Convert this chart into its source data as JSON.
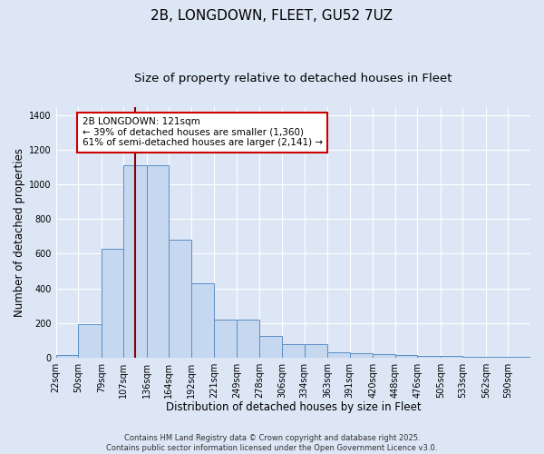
{
  "title_line1": "2B, LONGDOWN, FLEET, GU52 7UZ",
  "title_line2": "Size of property relative to detached houses in Fleet",
  "xlabel": "Distribution of detached houses by size in Fleet",
  "ylabel": "Number of detached properties",
  "bin_labels": [
    "22sqm",
    "50sqm",
    "79sqm",
    "107sqm",
    "136sqm",
    "164sqm",
    "192sqm",
    "221sqm",
    "249sqm",
    "278sqm",
    "306sqm",
    "334sqm",
    "363sqm",
    "391sqm",
    "420sqm",
    "448sqm",
    "476sqm",
    "505sqm",
    "533sqm",
    "562sqm",
    "590sqm"
  ],
  "bin_edges": [
    22,
    50,
    79,
    107,
    136,
    164,
    192,
    221,
    249,
    278,
    306,
    334,
    363,
    391,
    420,
    448,
    476,
    505,
    533,
    562,
    590
  ],
  "bar_heights": [
    15,
    190,
    630,
    1110,
    1110,
    680,
    430,
    220,
    220,
    125,
    75,
    75,
    30,
    25,
    20,
    15,
    10,
    8,
    5,
    5,
    3
  ],
  "bar_color": "#c5d8f0",
  "bar_edge_color": "#5b8ec4",
  "property_size": 121,
  "vline_color": "#8b0000",
  "annotation_text": "2B LONGDOWN: 121sqm\n← 39% of detached houses are smaller (1,360)\n61% of semi-detached houses are larger (2,141) →",
  "annotation_box_color": "#ffffff",
  "annotation_box_edge": "#cc0000",
  "ylim": [
    0,
    1450
  ],
  "yticks": [
    0,
    200,
    400,
    600,
    800,
    1000,
    1200,
    1400
  ],
  "background_color": "#dce6f5",
  "grid_color": "#ffffff",
  "footer_line1": "Contains HM Land Registry data © Crown copyright and database right 2025.",
  "footer_line2": "Contains public sector information licensed under the Open Government Licence v3.0.",
  "title_fontsize": 11,
  "subtitle_fontsize": 9.5,
  "axis_label_fontsize": 8.5,
  "tick_fontsize": 7,
  "annotation_fontsize": 7.5
}
